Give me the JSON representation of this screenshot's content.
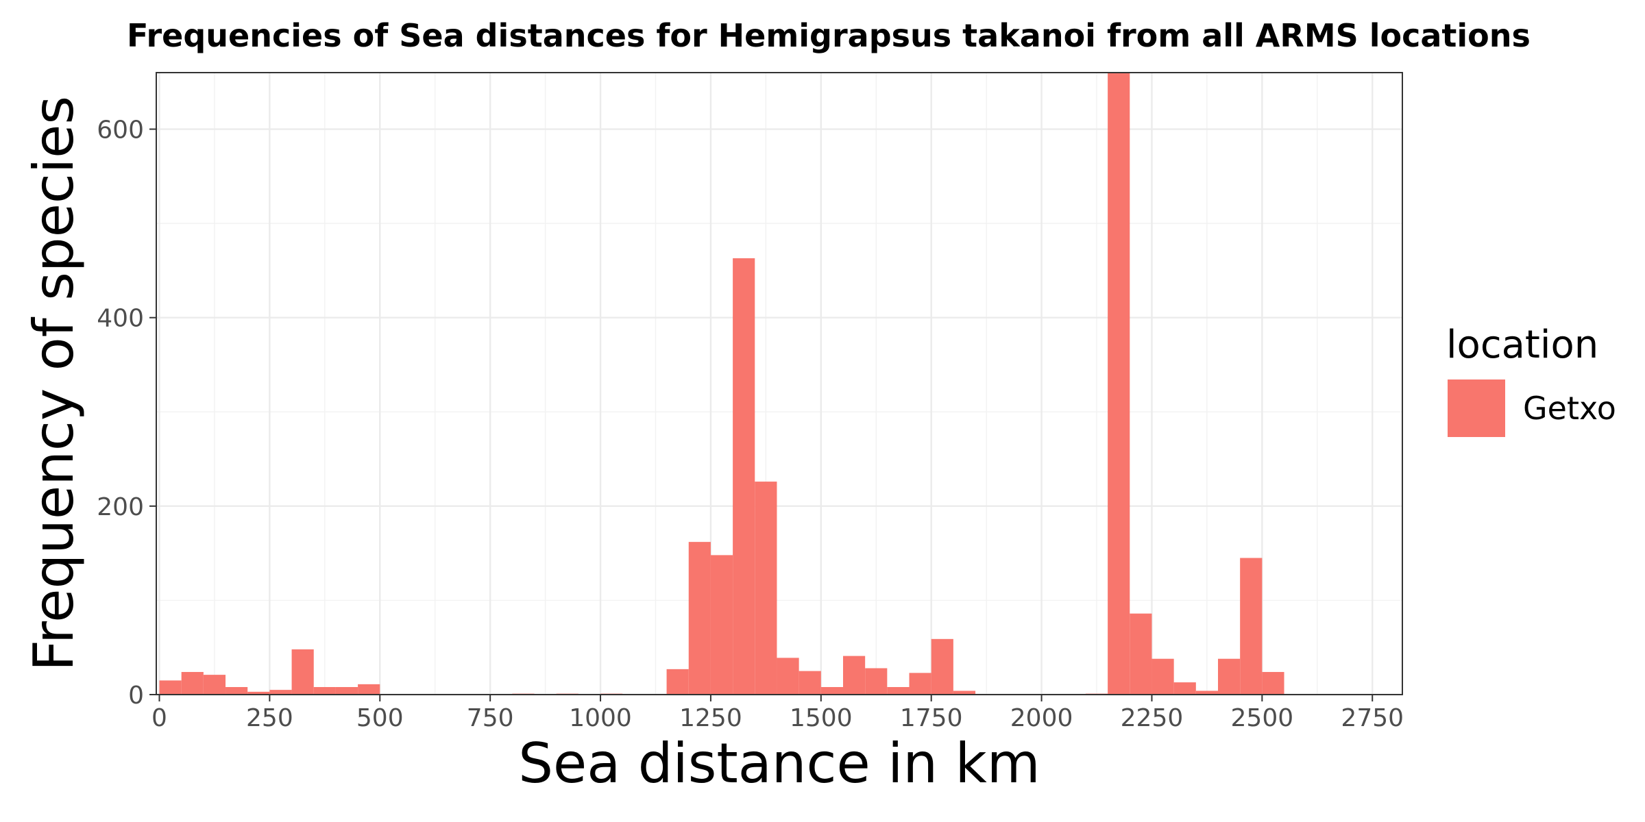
{
  "chart_data": {
    "type": "bar",
    "title": "Frequencies of Sea distances for Hemigrapsus takanoi from all ARMS locations",
    "xlabel": "Sea distance in km",
    "ylabel": "Frequency of species",
    "xlim": [
      0,
      2825
    ],
    "ylim": [
      0,
      660
    ],
    "bin_width": 50,
    "x_ticks": [
      0,
      250,
      500,
      750,
      1000,
      1250,
      1500,
      1750,
      2000,
      2250,
      2500,
      2750
    ],
    "x_tick_labels": [
      "0",
      "250",
      "500",
      "750",
      "1000",
      "1250",
      "1500",
      "1750",
      "2000",
      "2250",
      "2500",
      "2750"
    ],
    "y_ticks": [
      0,
      200,
      400,
      600
    ],
    "y_tick_labels": [
      "0",
      "200",
      "400",
      "600"
    ],
    "grid": true,
    "legend": {
      "title": "location",
      "position": "right"
    },
    "series": [
      {
        "name": "Getxo",
        "color": "#F8766D",
        "bins": [
          {
            "x0": 0,
            "x1": 50,
            "count": 15
          },
          {
            "x0": 50,
            "x1": 100,
            "count": 24
          },
          {
            "x0": 100,
            "x1": 150,
            "count": 21
          },
          {
            "x0": 150,
            "x1": 200,
            "count": 8
          },
          {
            "x0": 200,
            "x1": 250,
            "count": 3
          },
          {
            "x0": 250,
            "x1": 300,
            "count": 5
          },
          {
            "x0": 300,
            "x1": 350,
            "count": 48
          },
          {
            "x0": 350,
            "x1": 400,
            "count": 8
          },
          {
            "x0": 400,
            "x1": 450,
            "count": 8
          },
          {
            "x0": 450,
            "x1": 500,
            "count": 11
          },
          {
            "x0": 800,
            "x1": 850,
            "count": 1
          },
          {
            "x0": 900,
            "x1": 950,
            "count": 1
          },
          {
            "x0": 1000,
            "x1": 1050,
            "count": 1
          },
          {
            "x0": 1150,
            "x1": 1200,
            "count": 27
          },
          {
            "x0": 1200,
            "x1": 1250,
            "count": 162
          },
          {
            "x0": 1250,
            "x1": 1300,
            "count": 148
          },
          {
            "x0": 1300,
            "x1": 1350,
            "count": 463
          },
          {
            "x0": 1350,
            "x1": 1400,
            "count": 226
          },
          {
            "x0": 1400,
            "x1": 1450,
            "count": 39
          },
          {
            "x0": 1450,
            "x1": 1500,
            "count": 25
          },
          {
            "x0": 1500,
            "x1": 1550,
            "count": 8
          },
          {
            "x0": 1550,
            "x1": 1600,
            "count": 41
          },
          {
            "x0": 1600,
            "x1": 1650,
            "count": 28
          },
          {
            "x0": 1650,
            "x1": 1700,
            "count": 8
          },
          {
            "x0": 1700,
            "x1": 1750,
            "count": 23
          },
          {
            "x0": 1750,
            "x1": 1800,
            "count": 59
          },
          {
            "x0": 1800,
            "x1": 1850,
            "count": 4
          },
          {
            "x0": 2100,
            "x1": 2150,
            "count": 1
          },
          {
            "x0": 2150,
            "x1": 2200,
            "count": 675
          },
          {
            "x0": 2200,
            "x1": 2250,
            "count": 86
          },
          {
            "x0": 2250,
            "x1": 2300,
            "count": 38
          },
          {
            "x0": 2300,
            "x1": 2350,
            "count": 13
          },
          {
            "x0": 2350,
            "x1": 2400,
            "count": 4
          },
          {
            "x0": 2400,
            "x1": 2450,
            "count": 38
          },
          {
            "x0": 2450,
            "x1": 2500,
            "count": 145
          },
          {
            "x0": 2500,
            "x1": 2550,
            "count": 24
          }
        ]
      }
    ]
  }
}
